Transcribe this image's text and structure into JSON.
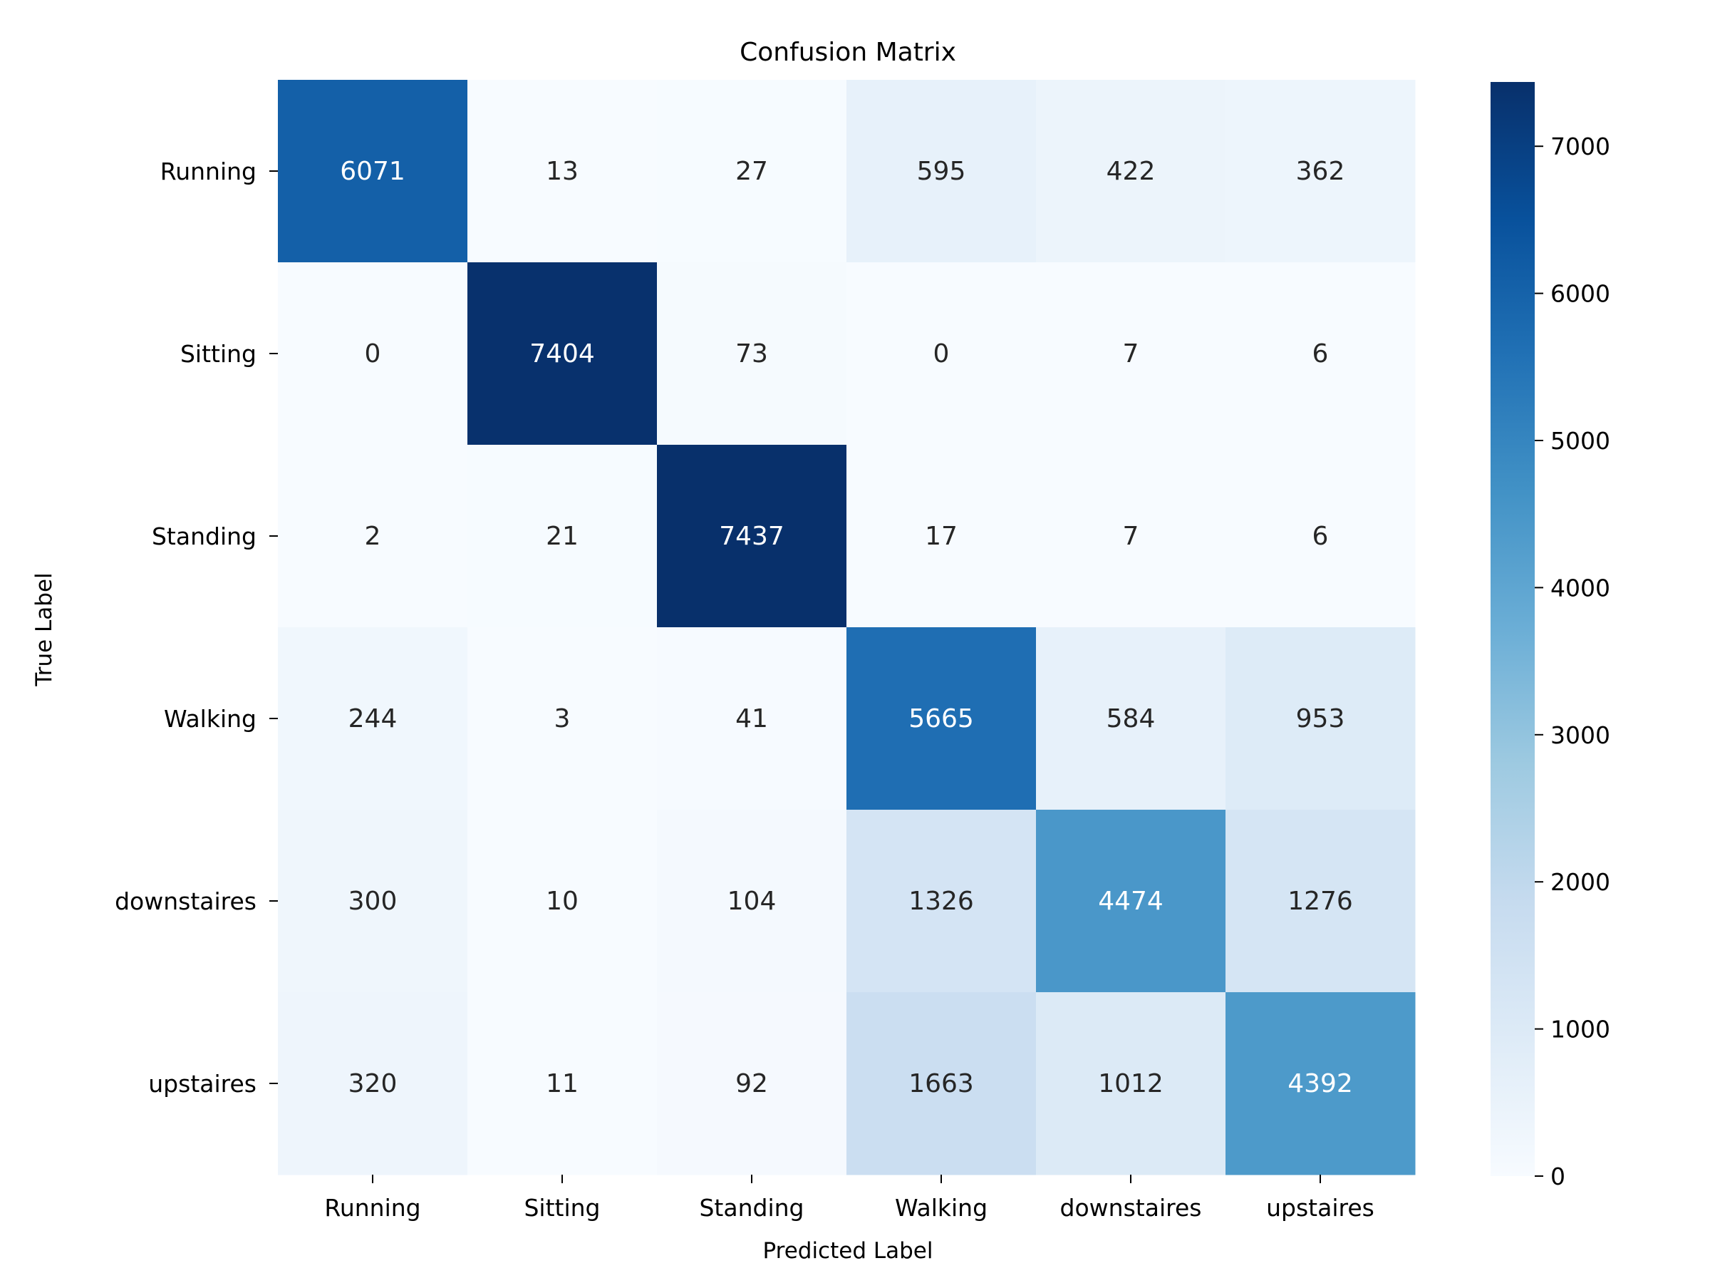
{
  "chart_data": {
    "type": "heatmap",
    "title": "Confusion Matrix",
    "xlabel": "Predicted Label",
    "ylabel": "True Label",
    "x_categories": [
      "Running",
      "Sitting",
      "Standing",
      "Walking",
      "downstaires",
      "upstaires"
    ],
    "y_categories": [
      "Running",
      "Sitting",
      "Standing",
      "Walking",
      "downstaires",
      "upstaires"
    ],
    "values": [
      [
        6071,
        13,
        27,
        595,
        422,
        362
      ],
      [
        0,
        7404,
        73,
        0,
        7,
        6
      ],
      [
        2,
        21,
        7437,
        17,
        7,
        6
      ],
      [
        244,
        3,
        41,
        5665,
        584,
        953
      ],
      [
        300,
        10,
        104,
        1326,
        4474,
        1276
      ],
      [
        320,
        11,
        92,
        1663,
        1012,
        4392
      ]
    ],
    "colormap": "Blues",
    "vmin": 0,
    "vmax": 7437,
    "colorbar_ticks": [
      0,
      1000,
      2000,
      3000,
      4000,
      5000,
      6000,
      7000
    ],
    "colors": {
      "low": "#f7fbff",
      "high": "#08306b",
      "dark_text": "#262626",
      "light_text": "#ffffff"
    }
  }
}
